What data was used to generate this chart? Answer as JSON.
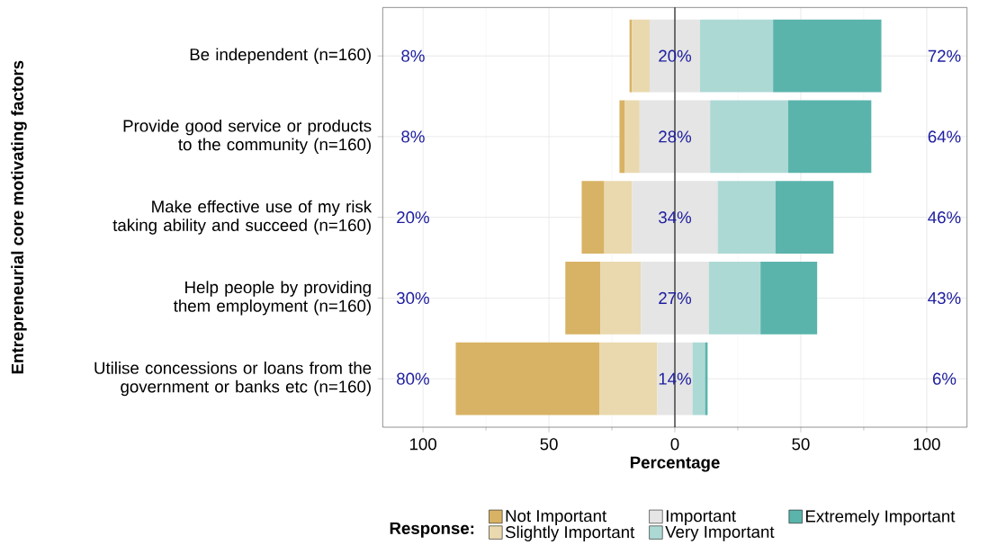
{
  "chart_data": {
    "type": "bar",
    "orientation": "horizontal",
    "xlabel": "Percentage",
    "ylabel": "Entrepreneurial core motivating factors",
    "legend_title": "Response:",
    "categories": [
      "Be independent (n=160)",
      "Provide good service or products to the community (n=160)",
      "Make effective use of my risk taking ability and succeed (n=160)",
      "Help people by providing them employment (n=160)",
      "Utilise concessions or loans from the government or banks etc (n=160)"
    ],
    "series": [
      {
        "name": "Not Important",
        "color": "#d8b365",
        "base": [
          -18,
          -22,
          -37,
          -43.5,
          -87
        ],
        "values": [
          1,
          2,
          9,
          14,
          57
        ]
      },
      {
        "name": "Slightly Important",
        "color": "#ead9ae",
        "base": [
          -17,
          -20,
          -28,
          -29.5,
          -30
        ],
        "values": [
          7,
          6,
          11,
          16,
          23
        ]
      },
      {
        "name": "Important",
        "color": "#e5e5e5",
        "base": [
          -10,
          -14,
          -17,
          -13.5,
          -7
        ],
        "values": [
          20,
          28,
          34,
          27,
          14
        ]
      },
      {
        "name": "Very Important",
        "color": "#add9d5",
        "base": [
          10,
          14,
          17,
          13.5,
          7
        ],
        "values": [
          29,
          31,
          23,
          20.5,
          5
        ]
      },
      {
        "name": "Extremely Important",
        "color": "#5ab4ac",
        "base": [
          39,
          45,
          40,
          34,
          12
        ],
        "values": [
          43,
          33,
          23,
          22.5,
          1
        ]
      }
    ],
    "xlim": [
      -116,
      116
    ],
    "xticks": [
      {
        "value": -100,
        "label": "100"
      },
      {
        "value": -50,
        "label": "50"
      },
      0,
      50,
      100
    ],
    "ref_lines": [
      {
        "axis": "x",
        "value": 0,
        "color": "#000000"
      }
    ],
    "annotations": [
      "8%",
      "20%",
      "72%",
      "8%",
      "28%",
      "64%",
      "20%",
      "34%",
      "46%",
      "30%",
      "27%",
      "43%",
      "80%",
      "14%",
      "6%"
    ],
    "grid": true,
    "legend": "bottom"
  }
}
